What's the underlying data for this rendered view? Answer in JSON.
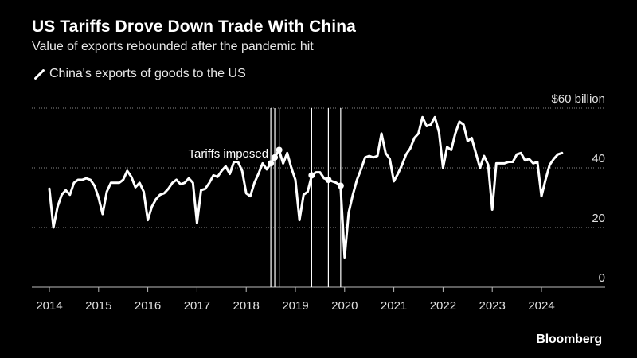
{
  "header": {
    "title": "US Tariffs Drove Down Trade With China",
    "subtitle": "Value of exports rebounded after the pandemic hit"
  },
  "legend": {
    "label": "China's exports of goods to the US",
    "color": "#ffffff"
  },
  "footer": {
    "brand": "Bloomberg"
  },
  "chart_data": {
    "type": "line",
    "title": "US Tariffs Drove Down Trade With China",
    "subtitle": "Value of exports rebounded after the pandemic hit",
    "unit_label": "$60 billion",
    "ylim": [
      0,
      60
    ],
    "y_ticks": [
      0,
      20,
      40,
      60
    ],
    "y_tick_labels": [
      "0",
      "20",
      "40",
      "$60 billion"
    ],
    "xlim": [
      2014,
      2025.1
    ],
    "x_ticks": [
      2014,
      2015,
      2016,
      2017,
      2018,
      2019,
      2020,
      2021,
      2022,
      2023,
      2024
    ],
    "x_tick_labels": [
      "2014",
      "2015",
      "2016",
      "2017",
      "2018",
      "2019",
      "2020",
      "2021",
      "2022",
      "2023",
      "2024"
    ],
    "grid": "horizontal dotted",
    "annotation": {
      "label": "Tariffs imposed",
      "x": 2018.5,
      "y": 43
    },
    "tariff_dates": [
      2018.5,
      2018.58,
      2018.67,
      2019.33,
      2019.67,
      2019.92
    ],
    "tariff_markers": [
      {
        "x": 2018.5,
        "y": 41.5
      },
      {
        "x": 2018.58,
        "y": 43.5
      },
      {
        "x": 2018.67,
        "y": 46
      },
      {
        "x": 2019.33,
        "y": 37.5
      },
      {
        "x": 2019.67,
        "y": 36
      },
      {
        "x": 2019.92,
        "y": 34
      }
    ],
    "series": [
      {
        "name": "China's exports of goods to the US",
        "color": "#ffffff",
        "x": [
          2014,
          2014.083,
          2014.167,
          2014.25,
          2014.333,
          2014.417,
          2014.5,
          2014.583,
          2014.667,
          2014.75,
          2014.833,
          2014.917,
          2015,
          2015.083,
          2015.167,
          2015.25,
          2015.333,
          2015.417,
          2015.5,
          2015.583,
          2015.667,
          2015.75,
          2015.833,
          2015.917,
          2016,
          2016.083,
          2016.167,
          2016.25,
          2016.333,
          2016.417,
          2016.5,
          2016.583,
          2016.667,
          2016.75,
          2016.833,
          2016.917,
          2017,
          2017.083,
          2017.167,
          2017.25,
          2017.333,
          2017.417,
          2017.5,
          2017.583,
          2017.667,
          2017.75,
          2017.833,
          2017.917,
          2018,
          2018.083,
          2018.167,
          2018.25,
          2018.333,
          2018.417,
          2018.5,
          2018.583,
          2018.667,
          2018.75,
          2018.833,
          2018.917,
          2019,
          2019.083,
          2019.167,
          2019.25,
          2019.333,
          2019.417,
          2019.5,
          2019.583,
          2019.667,
          2019.75,
          2019.833,
          2019.917,
          2020,
          2020.083,
          2020.167,
          2020.25,
          2020.333,
          2020.417,
          2020.5,
          2020.583,
          2020.667,
          2020.75,
          2020.833,
          2020.917,
          2021,
          2021.083,
          2021.167,
          2021.25,
          2021.333,
          2021.417,
          2021.5,
          2021.583,
          2021.667,
          2021.75,
          2021.833,
          2021.917,
          2022,
          2022.083,
          2022.167,
          2022.25,
          2022.333,
          2022.417,
          2022.5,
          2022.583,
          2022.667,
          2022.75,
          2022.833,
          2022.917,
          2023,
          2023.083,
          2023.167,
          2023.25,
          2023.333,
          2023.417,
          2023.5,
          2023.583,
          2023.667,
          2023.75,
          2023.833,
          2023.917,
          2024,
          2024.083,
          2024.167,
          2024.25,
          2024.333,
          2024.417
        ],
        "y": [
          33,
          20,
          27,
          31,
          32.5,
          31,
          35,
          36,
          36,
          36.5,
          36,
          34,
          30,
          24.5,
          32,
          35,
          35,
          35,
          36,
          39,
          37,
          33.5,
          35,
          32,
          22.5,
          27,
          29.5,
          31,
          31.5,
          33,
          35,
          36,
          34.5,
          35,
          36.5,
          35,
          21.5,
          32.5,
          33,
          35,
          37.5,
          37,
          39,
          40.5,
          38,
          42,
          42,
          39,
          31.5,
          30.5,
          35,
          38,
          41.5,
          39.5,
          41.5,
          43.5,
          46,
          41.5,
          45,
          40,
          36,
          22.5,
          31,
          32,
          37.5,
          38.5,
          38.5,
          36.5,
          36,
          35.5,
          35,
          34,
          10,
          25,
          31,
          36,
          39.5,
          43.5,
          44,
          43.5,
          44,
          51.5,
          45,
          43,
          35.5,
          38,
          41,
          44.5,
          46.5,
          50,
          51.5,
          57,
          54,
          54.5,
          57,
          52,
          40,
          47,
          46,
          51.5,
          55.5,
          54.5,
          49,
          50,
          45,
          40,
          44,
          41,
          26,
          41.5,
          41.5,
          41.5,
          42,
          42,
          44.5,
          45,
          42.5,
          43,
          41.5,
          42,
          30.5,
          36,
          41,
          43,
          44.5,
          45
        ]
      }
    ]
  }
}
